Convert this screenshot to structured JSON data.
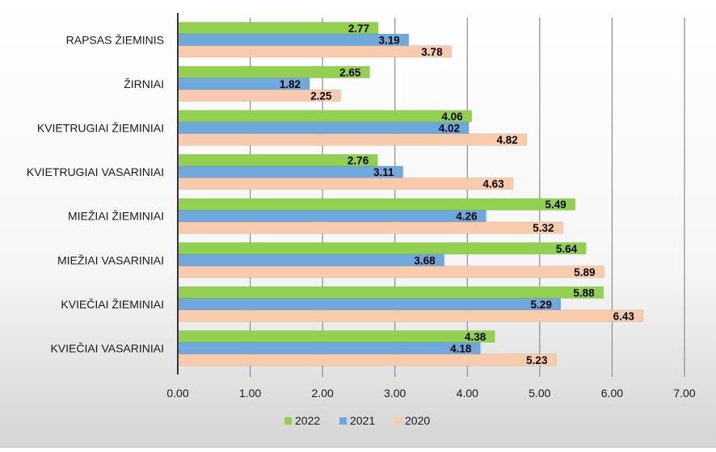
{
  "chart_data": {
    "type": "bar",
    "orientation": "horizontal",
    "categories": [
      "RAPSAS ŽIEMINIS",
      "ŽIRNIAI",
      "KVIETRUGIAI ŽIEMINIAI",
      "KVIETRUGIAI VASARINIAI",
      "MIEŽIAI ŽIEMINIAI",
      "MIEŽIAI VASARINIAI",
      "KVIEČIAI ŽIEMINIAI",
      "KVIEČIAI VASARINIAI"
    ],
    "series": [
      {
        "name": "2022",
        "color": "#92d050",
        "values": [
          2.77,
          2.65,
          4.06,
          2.76,
          5.49,
          5.64,
          5.88,
          4.38
        ]
      },
      {
        "name": "2021",
        "color": "#6fa8dc",
        "values": [
          3.19,
          1.82,
          4.02,
          3.11,
          4.26,
          3.68,
          5.29,
          4.18
        ]
      },
      {
        "name": "2020",
        "color": "#f8cbad",
        "values": [
          3.78,
          2.25,
          4.82,
          4.63,
          5.32,
          5.89,
          6.43,
          5.23
        ]
      }
    ],
    "xlim": [
      0,
      7
    ],
    "xticks": [
      "0.00",
      "1.00",
      "2.00",
      "3.00",
      "4.00",
      "5.00",
      "6.00",
      "7.00"
    ],
    "grid": true,
    "legend_position": "bottom"
  }
}
